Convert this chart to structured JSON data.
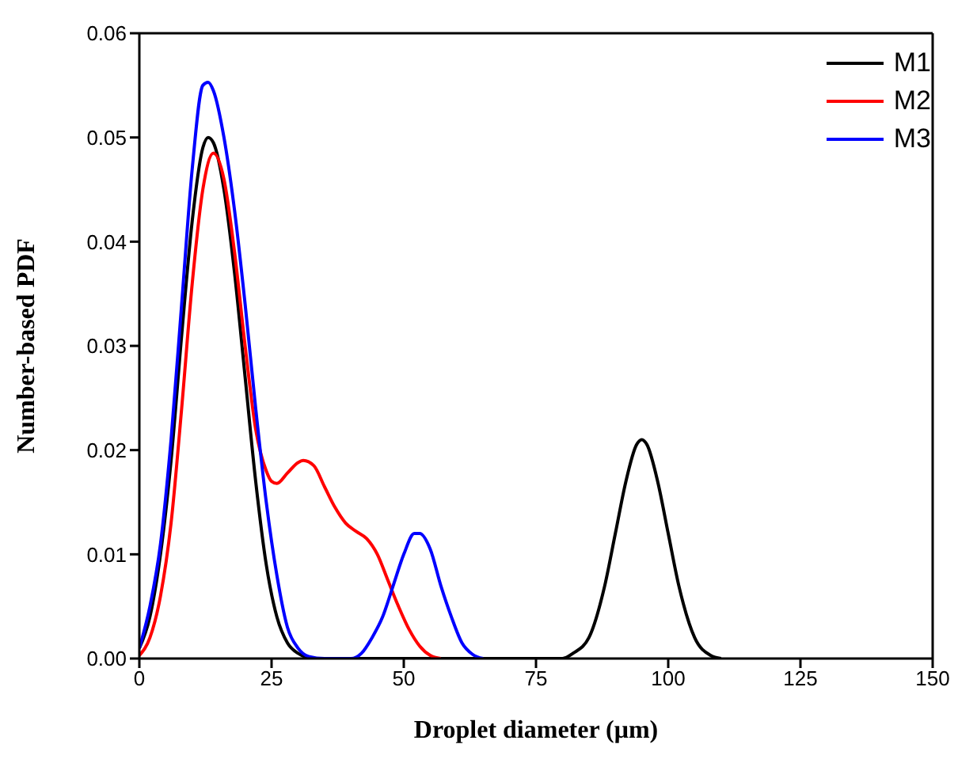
{
  "chart_data": {
    "type": "line",
    "xlabel": "Droplet diameter (μm)",
    "ylabel": "Number-based PDF",
    "xlim": [
      0,
      150
    ],
    "xticks": [
      0,
      25,
      50,
      75,
      100,
      125,
      150
    ],
    "ylim": [
      0,
      0.06
    ],
    "yticks": [
      {
        "value": 0,
        "label": "0.00"
      },
      {
        "value": 0.01,
        "label": "0.01"
      },
      {
        "value": 0.02,
        "label": "0.02"
      },
      {
        "value": 0.03,
        "label": "0.03"
      },
      {
        "value": 0.04,
        "label": "0.04"
      },
      {
        "value": 0.05,
        "label": "0.05"
      },
      {
        "value": 0.06,
        "label": "0.06"
      }
    ],
    "legend": "top right",
    "marker": "none",
    "line_style": "solid",
    "grid": false,
    "series": [
      {
        "name": "M1",
        "color": "#000000",
        "x": [
          0,
          2,
          4,
          6,
          8,
          10,
          12,
          13,
          14,
          16,
          18,
          20,
          22,
          24,
          26,
          28,
          30,
          33,
          80,
          82,
          85,
          88,
          90,
          92,
          94,
          95,
          96,
          98,
          100,
          102,
          105,
          108,
          110
        ],
        "values": [
          0.001,
          0.004,
          0.01,
          0.019,
          0.031,
          0.042,
          0.049,
          0.05,
          0.0495,
          0.045,
          0.037,
          0.027,
          0.017,
          0.009,
          0.004,
          0.0015,
          0.0005,
          0,
          0,
          0.0005,
          0.002,
          0.007,
          0.012,
          0.017,
          0.0205,
          0.021,
          0.0205,
          0.017,
          0.012,
          0.007,
          0.002,
          0.0003,
          0
        ]
      },
      {
        "name": "M2",
        "color": "#ff0000",
        "x": [
          0,
          2,
          4,
          6,
          8,
          10,
          12,
          14,
          16,
          18,
          20,
          22,
          24,
          25,
          26,
          28,
          30,
          31,
          33,
          35,
          37,
          39,
          41,
          43,
          45,
          47,
          49,
          51,
          53,
          55,
          57
        ],
        "values": [
          0.0003,
          0.002,
          0.006,
          0.013,
          0.024,
          0.036,
          0.045,
          0.0485,
          0.046,
          0.039,
          0.03,
          0.022,
          0.018,
          0.017,
          0.0168,
          0.0178,
          0.0188,
          0.019,
          0.0185,
          0.0165,
          0.0145,
          0.013,
          0.0122,
          0.0115,
          0.01,
          0.0075,
          0.005,
          0.0028,
          0.0012,
          0.0003,
          0
        ]
      },
      {
        "name": "M3",
        "color": "#0000ff",
        "x": [
          0,
          2,
          4,
          6,
          8,
          10,
          12,
          13,
          14,
          16,
          18,
          20,
          22,
          24,
          26,
          28,
          30,
          32,
          35,
          40,
          42,
          44,
          46,
          48,
          50,
          52,
          53,
          55,
          57,
          59,
          61,
          63,
          65
        ],
        "values": [
          0.001,
          0.005,
          0.011,
          0.021,
          0.034,
          0.047,
          0.055,
          0.0553,
          0.0545,
          0.05,
          0.043,
          0.034,
          0.024,
          0.015,
          0.008,
          0.003,
          0.001,
          0.0002,
          0,
          0,
          0.0005,
          0.002,
          0.004,
          0.007,
          0.01,
          0.012,
          0.012,
          0.0105,
          0.007,
          0.004,
          0.0015,
          0.0004,
          0
        ]
      }
    ]
  }
}
